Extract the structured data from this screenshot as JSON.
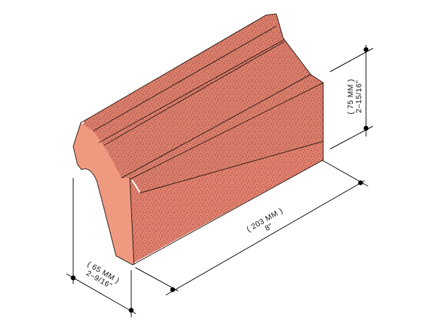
{
  "figure": {
    "dimensions": {
      "length": {
        "metric": "( 203 MM )",
        "imperial": "8\""
      },
      "height": {
        "metric": "( 75 MM )",
        "imperial": "2–15/16\""
      },
      "width": {
        "metric": "( 65 MM )",
        "imperial": "2–9/16\""
      }
    },
    "colors": {
      "top": "#dd7e6c",
      "front": "#e3806e",
      "end": "#ef9a80",
      "speckle": "#3a1e18",
      "line": "#000000"
    }
  }
}
